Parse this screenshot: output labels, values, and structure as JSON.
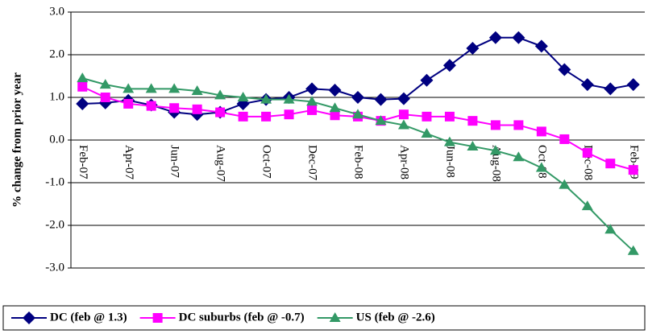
{
  "chart_data": {
    "type": "line",
    "y_label": "% change from prior year",
    "categories": [
      "Feb-07",
      null,
      "Apr-07",
      null,
      "Jun-07",
      null,
      "Aug-07",
      null,
      "Oct-07",
      null,
      "Dec-07",
      null,
      "Feb-08",
      null,
      "Apr-08",
      null,
      "Jun-08",
      null,
      "Aug-08",
      null,
      "Oct-08",
      null,
      "Dec-08",
      null,
      "Feb-09"
    ],
    "series": [
      {
        "name": "DC (feb @ 1.3)",
        "color": "#000080",
        "marker": "diamond",
        "values": [
          0.85,
          0.87,
          0.93,
          0.82,
          0.65,
          0.6,
          0.65,
          0.85,
          0.95,
          1.0,
          1.2,
          1.17,
          1.0,
          0.95,
          0.97,
          1.4,
          1.75,
          2.15,
          2.4,
          2.4,
          2.2,
          1.65,
          1.3,
          1.2,
          1.3
        ]
      },
      {
        "name": "DC suburbs (feb @ -0.7)",
        "color": "#ff00ff",
        "marker": "square",
        "values": [
          1.25,
          1.0,
          0.85,
          0.8,
          0.75,
          0.72,
          0.65,
          0.55,
          0.55,
          0.6,
          0.7,
          0.58,
          0.55,
          0.45,
          0.6,
          0.55,
          0.55,
          0.45,
          0.35,
          0.35,
          0.2,
          0.02,
          -0.3,
          -0.55,
          -0.7
        ]
      },
      {
        "name": "US (feb @ -2.6)",
        "color": "#339966",
        "marker": "triangle",
        "values": [
          1.45,
          1.3,
          1.2,
          1.2,
          1.2,
          1.15,
          1.05,
          1.0,
          0.95,
          0.95,
          0.9,
          0.75,
          0.6,
          0.45,
          0.35,
          0.15,
          -0.05,
          -0.15,
          -0.25,
          -0.4,
          -0.65,
          -1.05,
          -1.55,
          -2.1,
          -2.6
        ]
      }
    ],
    "ylim": [
      -3,
      3
    ],
    "yticks": [
      {
        "value": -3,
        "label": "-3.0"
      },
      {
        "value": -2,
        "label": "-2.0"
      },
      {
        "value": -1,
        "label": "-1.0"
      },
      {
        "value": 0,
        "label": "0.0"
      },
      {
        "value": 1,
        "label": "1.0"
      },
      {
        "value": 2,
        "label": "2.0"
      },
      {
        "value": 3,
        "label": "3.0"
      }
    ],
    "grid": true,
    "legend": "bottom"
  }
}
